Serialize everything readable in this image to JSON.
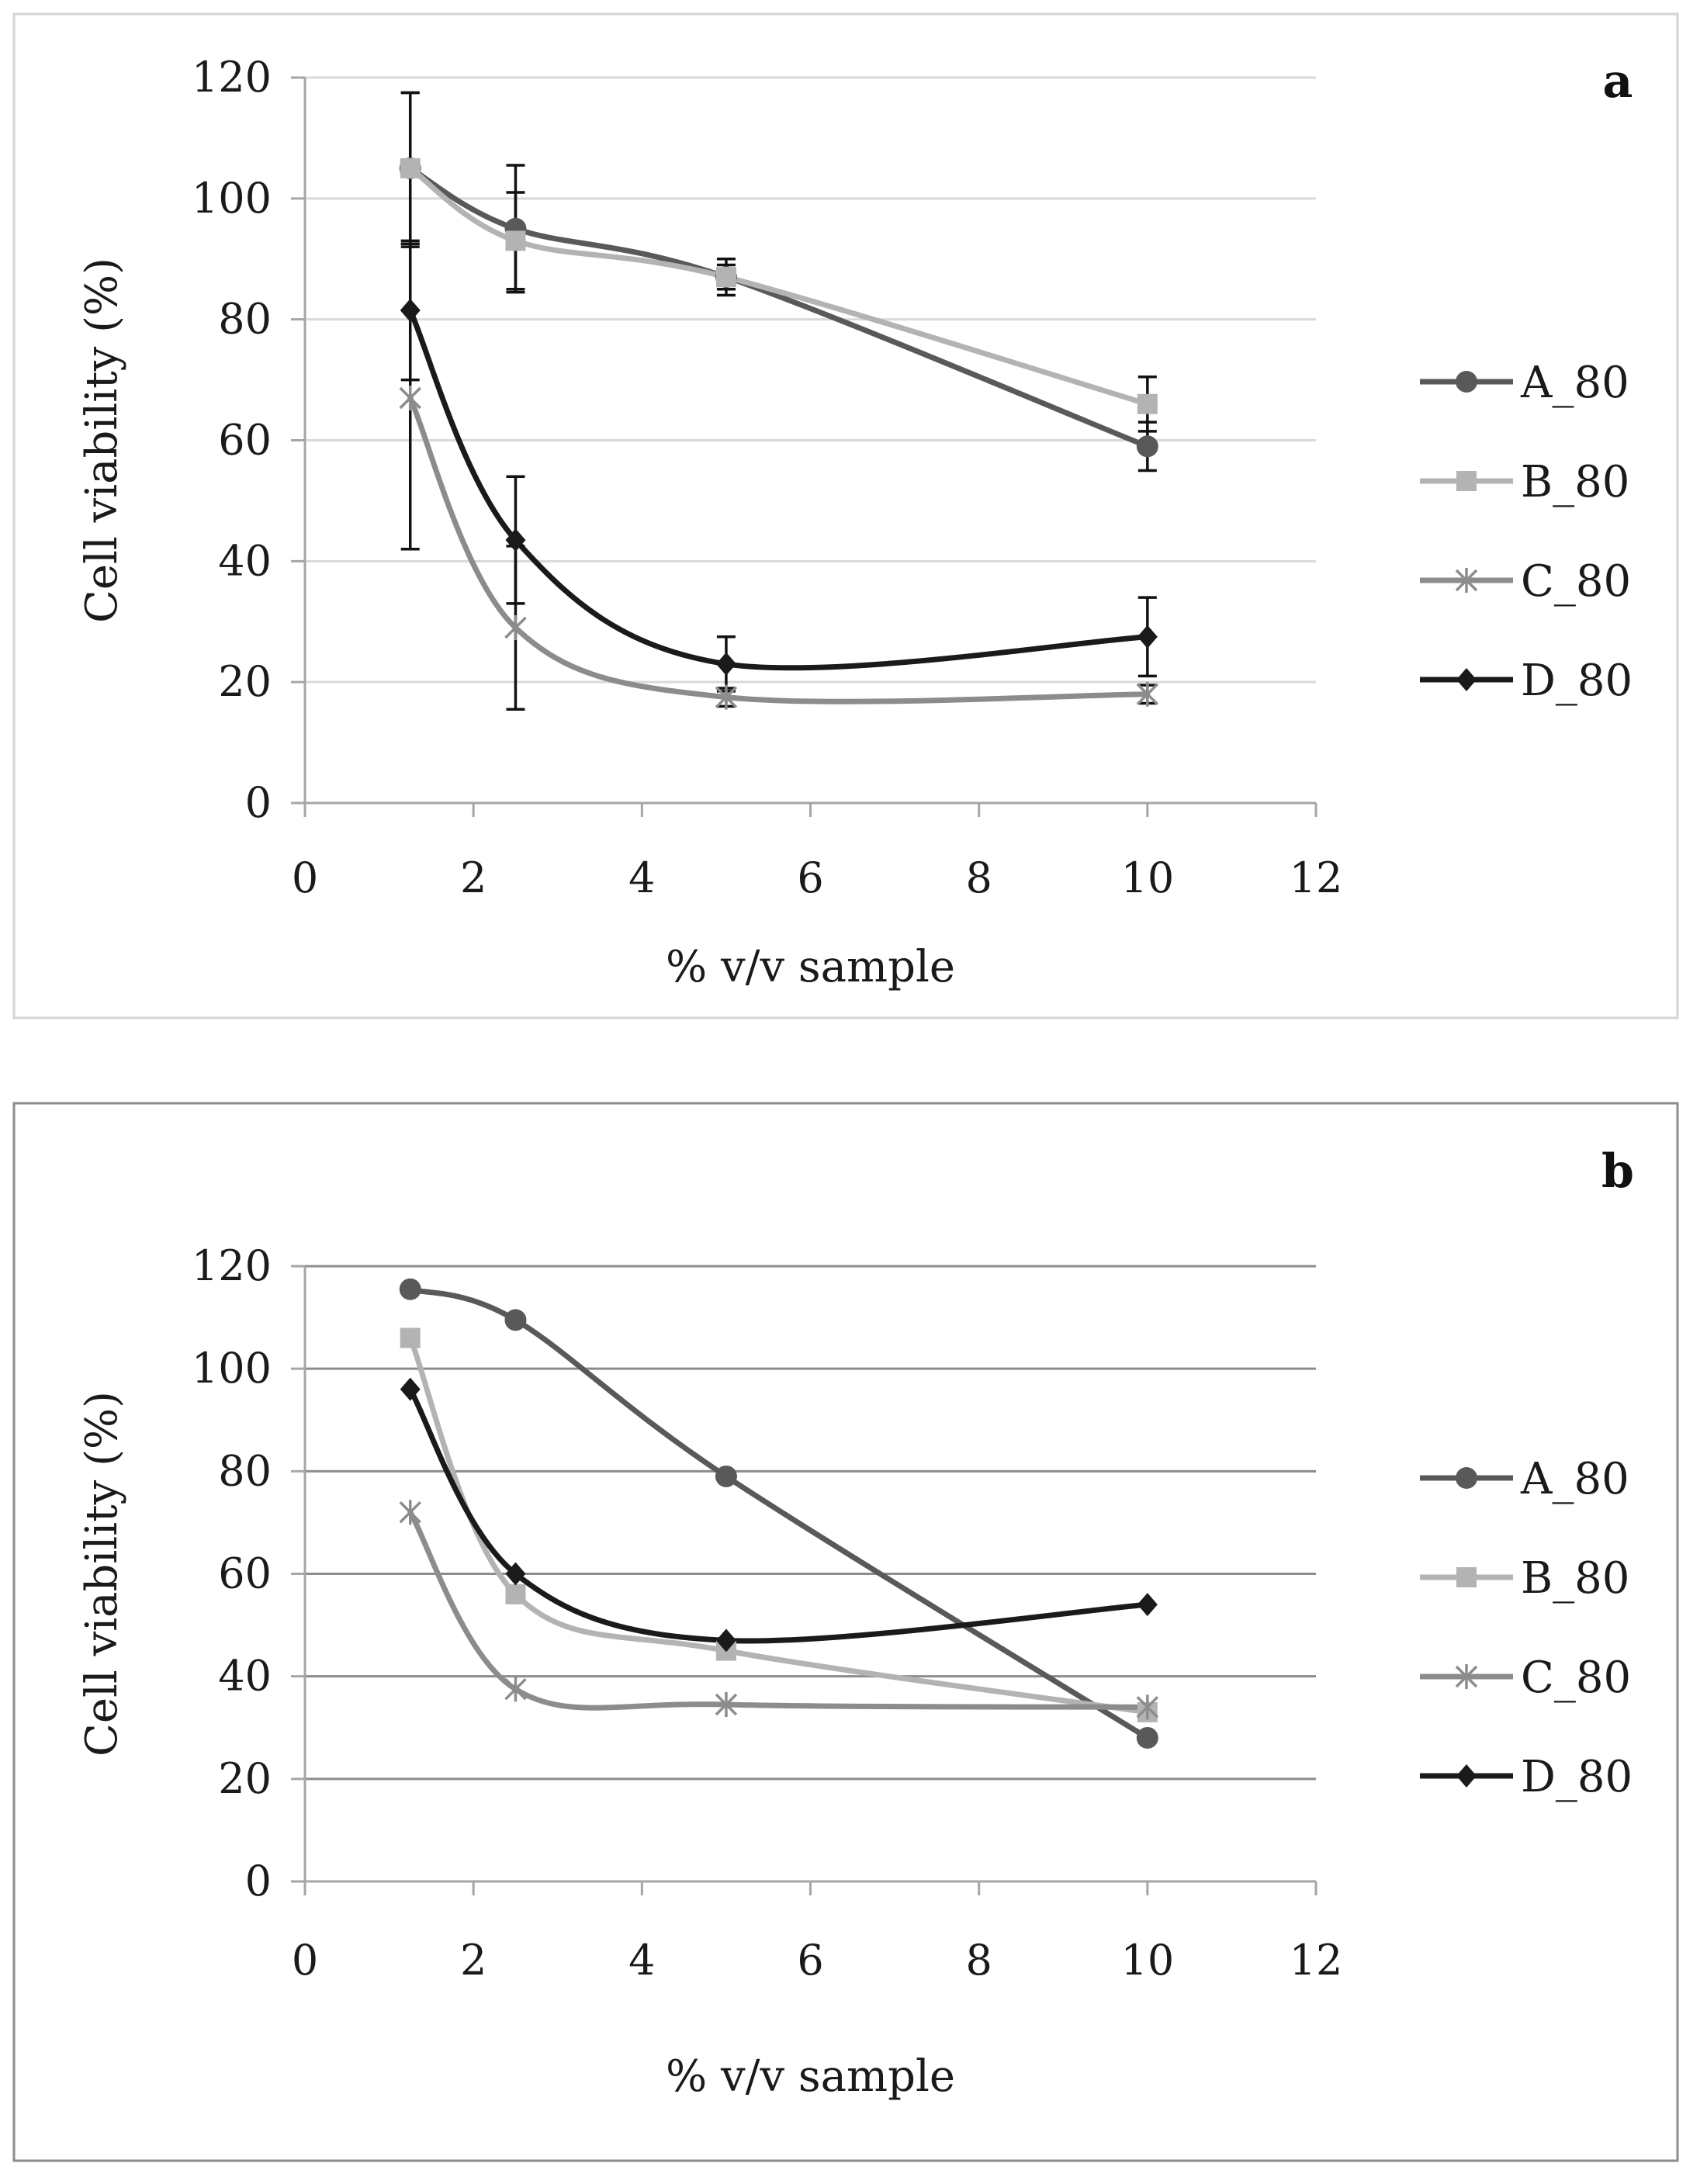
{
  "chart_data": [
    {
      "type": "line",
      "panel_label": "a",
      "xlabel": "% v/v sample",
      "ylabel": "Cell viability (%)",
      "xlim": [
        0,
        12
      ],
      "ylim": [
        0,
        120
      ],
      "xticks": [
        0,
        2,
        4,
        6,
        8,
        10,
        12
      ],
      "yticks": [
        0,
        20,
        40,
        60,
        80,
        100,
        120
      ],
      "grid": "horizontal",
      "legend_position": "right",
      "x": [
        1.25,
        2.5,
        5,
        10
      ],
      "series": [
        {
          "name": "A_80",
          "color": "#595959",
          "marker": "circle",
          "values": [
            105,
            95,
            87,
            59
          ],
          "errors": [
            12.5,
            10.5,
            3,
            4
          ]
        },
        {
          "name": "B_80",
          "color": "#b3b3b3",
          "marker": "square",
          "values": [
            105,
            93,
            87,
            66
          ],
          "errors": [
            12.5,
            8,
            2,
            4.5
          ]
        },
        {
          "name": "C_80",
          "color": "#8c8c8c",
          "marker": "asterisk",
          "values": [
            67,
            29,
            17.5,
            18
          ],
          "errors": [
            25,
            13.5,
            1.5,
            1.5
          ]
        },
        {
          "name": "D_80",
          "color": "#1a1a1a",
          "marker": "diamond",
          "values": [
            81.5,
            43.5,
            23,
            27.5
          ],
          "errors": [
            11.5,
            10.5,
            4.5,
            6.5
          ]
        }
      ]
    },
    {
      "type": "line",
      "panel_label": "b",
      "xlabel": "% v/v sample",
      "ylabel": "Cell viability (%)",
      "xlim": [
        0,
        12
      ],
      "ylim": [
        0,
        120
      ],
      "xticks": [
        0,
        2,
        4,
        6,
        8,
        10,
        12
      ],
      "yticks": [
        0,
        20,
        40,
        60,
        80,
        100,
        120
      ],
      "grid": "horizontal",
      "legend_position": "right",
      "x": [
        1.25,
        2.5,
        5,
        10
      ],
      "series": [
        {
          "name": "A_80",
          "color": "#595959",
          "marker": "circle",
          "values": [
            115.5,
            109.5,
            79,
            28
          ]
        },
        {
          "name": "B_80",
          "color": "#b3b3b3",
          "marker": "square",
          "values": [
            106,
            56,
            45,
            33
          ]
        },
        {
          "name": "C_80",
          "color": "#8c8c8c",
          "marker": "asterisk",
          "values": [
            72,
            37.5,
            34.5,
            34
          ]
        },
        {
          "name": "D_80",
          "color": "#1a1a1a",
          "marker": "diamond",
          "values": [
            96,
            60,
            47,
            54
          ]
        }
      ]
    }
  ]
}
